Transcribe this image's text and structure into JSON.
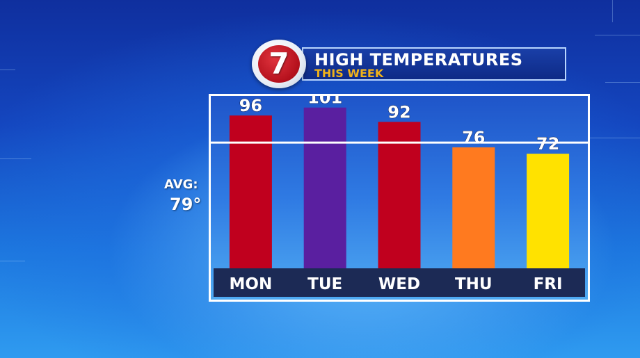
{
  "header": {
    "logo_text": "7",
    "title": "HIGH TEMPERATURES",
    "subtitle": "THIS WEEK"
  },
  "average": {
    "label": "AVG:",
    "value_text": "79°",
    "value": 79
  },
  "chart_data": {
    "type": "bar",
    "title": "HIGH TEMPERATURES",
    "subtitle": "THIS WEEK",
    "xlabel": "",
    "ylabel": "",
    "categories": [
      "MON",
      "TUE",
      "WED",
      "THU",
      "FRI"
    ],
    "values": [
      96,
      101,
      92,
      76,
      72
    ],
    "bar_colors": [
      "#c0001e",
      "#5a1fa0",
      "#c0001e",
      "#ff7a1f",
      "#ffe200"
    ],
    "average": 79,
    "grid": false,
    "legend": "none"
  },
  "colors": {
    "axis_band": "#1c2a55",
    "average_line": "#ffffff",
    "logo_red": "#b4101c",
    "subtitle": "#f0b21a"
  }
}
